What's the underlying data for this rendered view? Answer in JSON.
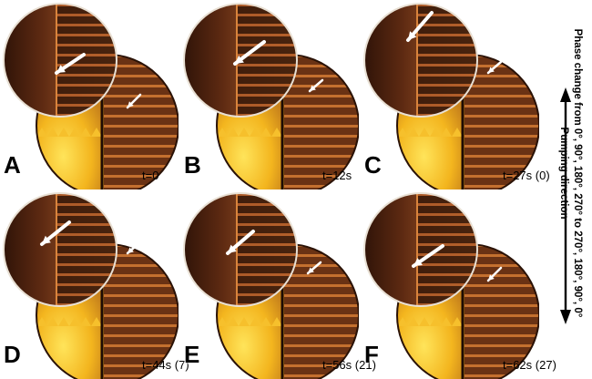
{
  "panels": [
    {
      "label": "A",
      "time": "t=0"
    },
    {
      "label": "B",
      "time": "t=12s"
    },
    {
      "label": "C",
      "time": "t=27s (0)"
    },
    {
      "label": "D",
      "time": "t=44s (7)"
    },
    {
      "label": "E",
      "time": "t=56s (21)"
    },
    {
      "label": "F",
      "time": "t=62s (27)"
    }
  ],
  "side": {
    "phase_text": "Phase change from 0°, 90°, 180°, 270° to 270°, 180°, 90°, 0°",
    "pumping_text": "Pumping direction"
  },
  "colors": {
    "electrode_bright": "#f3b51e",
    "channel_dark": "#5b2a10",
    "magnifier": "#a8532a"
  }
}
